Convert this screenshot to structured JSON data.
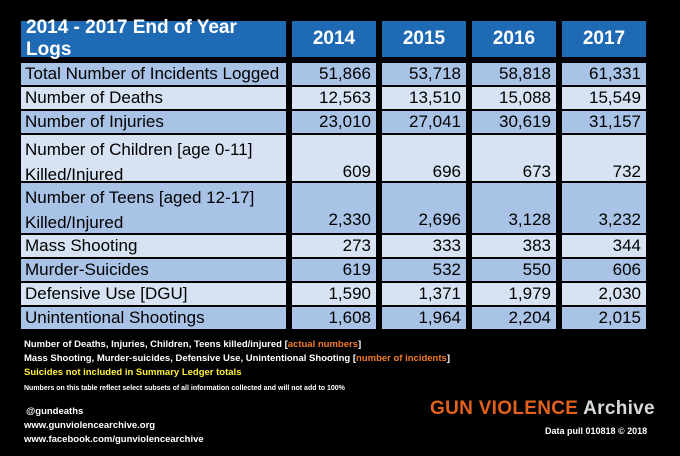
{
  "table": {
    "title": "2014 - 2017 End of Year Logs",
    "years": [
      "2014",
      "2015",
      "2016",
      "2017"
    ],
    "rows": [
      {
        "label": "Total Number of Incidents Logged",
        "values": [
          "51,866",
          "53,718",
          "58,818",
          "61,331"
        ]
      },
      {
        "label": "Number of Deaths",
        "values": [
          "12,563",
          "13,510",
          "15,088",
          "15,549"
        ]
      },
      {
        "label": "Number of Injuries",
        "values": [
          "23,010",
          "27,041",
          "30,619",
          "31,157"
        ]
      },
      {
        "label_line1": "Number of Children [age 0-11]",
        "label_line2": "Killed/Injured",
        "values": [
          "609",
          "696",
          "673",
          "732"
        ]
      },
      {
        "label_line1": "Number of Teens [aged 12-17]",
        "label_line2": "Killed/Injured",
        "values": [
          "2,330",
          "2,696",
          "3,128",
          "3,232"
        ]
      },
      {
        "label": "Mass Shooting",
        "values": [
          "273",
          "333",
          "383",
          "344"
        ]
      },
      {
        "label": "Murder-Suicides",
        "values": [
          "619",
          "532",
          "550",
          "606"
        ]
      },
      {
        "label": "Defensive Use [DGU]",
        "values": [
          "1,590",
          "1,371",
          "1,979",
          "2,030"
        ]
      },
      {
        "label": "Unintentional Shootings",
        "values": [
          "1,608",
          "1,964",
          "2,204",
          "2,015"
        ]
      }
    ]
  },
  "notes": {
    "line1_prefix": "Number of Deaths, Injuries, Children, Teens  killed/injured [",
    "line1_highlight": "actual numbers",
    "line1_suffix": "]",
    "line2_prefix": "Mass Shooting, Murder-suicides, Defensive Use, Unintentional Shooting [",
    "line2_highlight": "number of incidents",
    "line2_suffix": "]",
    "line3": "Suicides not included in Summary Ledger totals",
    "line4": "Numbers on this table reflect  select subsets of all information collected and will not add to 100%"
  },
  "social": {
    "handle": "@gundeaths",
    "website": "www.gunviolencearchive.org",
    "facebook": "www.facebook.com/gunviolencearchive"
  },
  "logo": {
    "gun_violence": "GUN VIOLENCE",
    "archive": " Archive",
    "data_pull": "Data pull 010818   © 2018"
  },
  "colors": {
    "header_blue": "#1f6ab5",
    "row_dark": "#a9c3e6",
    "row_light": "#d7e3f3",
    "highlight_orange": "#f07a2a",
    "note_yellow": "#ffef3a"
  }
}
